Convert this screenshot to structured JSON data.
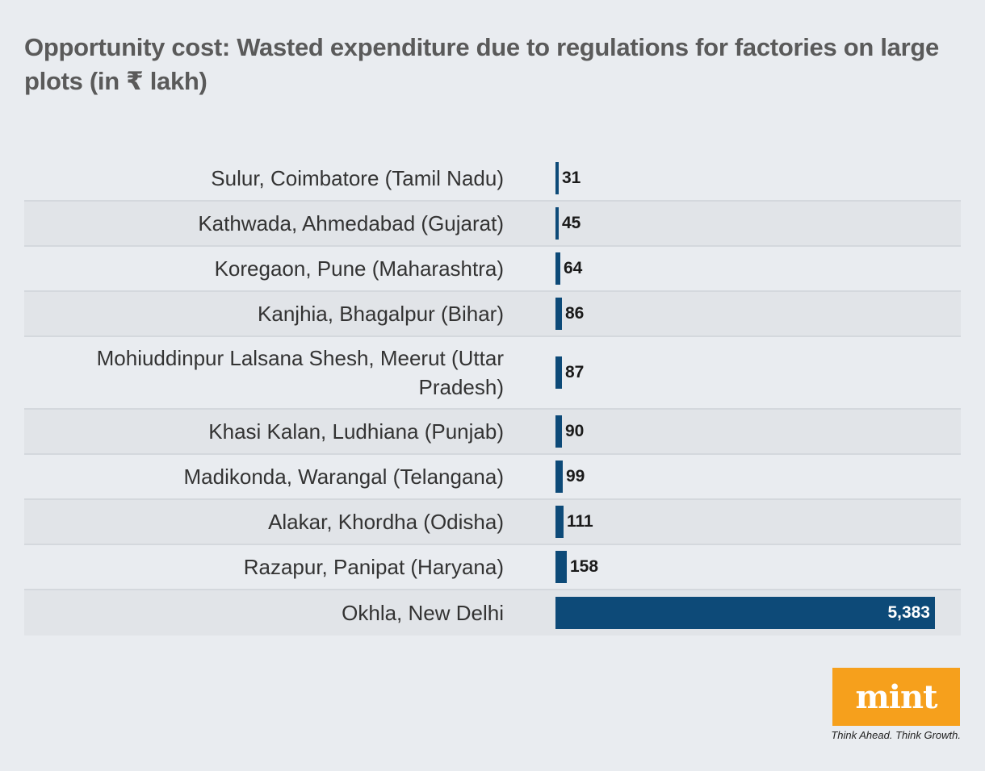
{
  "title": "Opportunity cost: Wasted expenditure due to regulations for factories on large plots (in ₹ lakh)",
  "chart_data": {
    "type": "bar",
    "orientation": "horizontal",
    "title": "Opportunity cost: Wasted expenditure due to regulations for factories on large plots (in ₹ lakh)",
    "categories": [
      "Sulur, Coimbatore (Tamil Nadu)",
      "Kathwada, Ahmedabad (Gujarat)",
      "Koregaon, Pune (Maharashtra)",
      "Kanjhia, Bhagalpur (Bihar)",
      "Mohiuddinpur Lalsana Shesh, Meerut (Uttar Pradesh)",
      "Khasi Kalan, Ludhiana (Punjab)",
      "Madikonda, Warangal (Telangana)",
      "Alakar, Khordha (Odisha)",
      "Razapur, Panipat (Haryana)",
      "Okhla, New Delhi"
    ],
    "values": [
      31,
      45,
      64,
      86,
      87,
      90,
      99,
      111,
      158,
      5383
    ],
    "value_labels": [
      "31",
      "45",
      "64",
      "86",
      "87",
      "90",
      "99",
      "111",
      "158",
      "5,383"
    ],
    "xlim": [
      0,
      5383
    ],
    "bar_color": "#0d4a78",
    "grid": false,
    "legend": "none"
  },
  "logo": {
    "text": "mint",
    "tagline": "Think Ahead. Think Growth.",
    "color": "#f6a01c"
  }
}
